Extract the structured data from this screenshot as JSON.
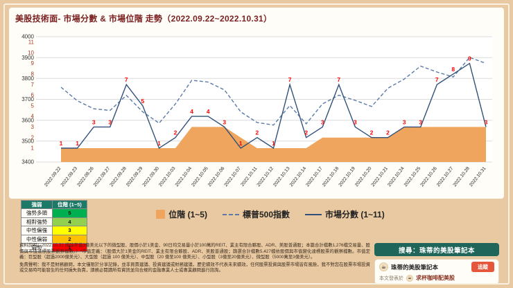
{
  "title": "美股技術面- 市場分數 & 市場位階 走勢（2022.09.22~2022.10.31）",
  "colors": {
    "background": "#e9c9a2",
    "panel": "#fffdf8",
    "title_color": "#7a1f1f",
    "plot_background": "#ffffff",
    "grid_color": "#dcdcdc",
    "area_color": "#f0a55e",
    "sp500_line_color": "#5a7aa8",
    "score_line_color": "#31517a",
    "score_label_color": "#ff0000",
    "score_axis_color": "#9c3b2e",
    "index_axis_color": "#333333",
    "date_label_color": "#222222",
    "banner_background": "#20655a",
    "follow_button_color": "#e4573d",
    "table_header_color": "#1d7a68"
  },
  "chart_data": {
    "type": "combo (area + dashed line + line)",
    "x": [
      "2022.09.22",
      "2022.09.23",
      "2022.09.26",
      "2022.09.27",
      "2022.09.28",
      "2022.09.29",
      "2022.09.30",
      "2022.10.03",
      "2022.10.04",
      "2022.10.05",
      "2022.10.06",
      "2022.10.07",
      "2022.10.11",
      "2022.10.12",
      "2022.10.13",
      "2022.10.14",
      "2022.10.17",
      "2022.10.18",
      "2022.10.19",
      "2022.10.20",
      "2022.10.21",
      "2022.10.24",
      "2022.10.25",
      "2022.10.26",
      "2022.10.27",
      "2022.10.28",
      "2022.10.31"
    ],
    "series": [
      {
        "name": "位階 (1~5)",
        "type": "area",
        "style": "filled",
        "axis": "score",
        "values": [
          1,
          1,
          1,
          1,
          1,
          1,
          1,
          1,
          3,
          3,
          3,
          2,
          1,
          1,
          1,
          1,
          2,
          2,
          2,
          2,
          2,
          3,
          3,
          3,
          3,
          3,
          3
        ]
      },
      {
        "name": "標普500指數",
        "type": "line",
        "style": "dashed",
        "axis": "index",
        "values": [
          3758,
          3693,
          3655,
          3647,
          3719,
          3640,
          3586,
          3678,
          3791,
          3783,
          3745,
          3640,
          3589,
          3577,
          3670,
          3583,
          3678,
          3720,
          3695,
          3666,
          3753,
          3797,
          3859,
          3831,
          3807,
          3901,
          3872
        ]
      },
      {
        "name": "市場分數 (1~11)",
        "type": "line",
        "style": "solid",
        "axis": "score",
        "point_labels": true,
        "values": [
          1,
          1,
          3,
          3,
          7,
          5,
          1,
          2,
          4,
          4,
          3,
          1,
          2,
          1,
          7,
          2,
          3,
          7,
          3,
          2,
          2,
          3,
          3,
          7,
          8,
          9,
          3
        ]
      }
    ],
    "axes": {
      "score": {
        "label": "市場分數 / 位階",
        "ticks": [
          1,
          2,
          3,
          4,
          5,
          6,
          7,
          8,
          9,
          10,
          11
        ],
        "range": [
          0,
          11.5
        ]
      },
      "index": {
        "label": "標普500指數",
        "ticks": [
          3400,
          3500,
          3600,
          3700,
          3800,
          3900,
          4000
        ],
        "range": [
          3400,
          4000
        ]
      }
    },
    "grid": "horizontal",
    "legend_position": "bottom",
    "x_label_rotation": -52
  },
  "strength_table": {
    "headers": [
      "強弱",
      "位階 (1~5)"
    ],
    "rows": [
      {
        "label": "強勢多頭",
        "value": "5",
        "color": "#00b050"
      },
      {
        "label": "相對強勢",
        "value": "4",
        "color": "#92d050"
      },
      {
        "label": "中性偏強",
        "value": "3",
        "color": "#ffff00"
      },
      {
        "label": "中性偏弱",
        "value": "2",
        "color": "#ffc000"
      },
      {
        "label": "弱勢",
        "value": "1",
        "color": "#ff0000"
      }
    ]
  },
  "notes": {
    "data_note": "資料說明：2022.10.31 排除市值3億美元以下的微型股、股價小於1美金、90日均交易量小於100萬的REIT、業主有限合夥股、ADR、美股普通股；本篇合計檔數1,276檔交易量、股價與市值達標股票觀察檔數。）*市值定義：（股價大於1美金的REIT、業主有限合夥股、ADR、美股普通股；篩選合計檔數5,427檔依股價與市值變化達標股票的觀察檔數。市值定義：巨型股（超過2000億美元）、大型股（超過 100 億美元）、中型股（20 億至100 億美元）、小型股（3億至20億美元）、微型股（5000萬至3億美元）。",
    "disclaimer": "免責聲明：我不是財務顧問，本文僅限於分享記錄，並非買賣建議、投資建議或財務建議，歷史績效不代表未來績效，任何股票投資與股票市場皆有風險，我不對您在股票市場投資或交易時可能發生的任何損失負責，請務必閱讀所有資訊並向合規的金融專業人士或專業顧問進行諮詢。"
  },
  "footer": {
    "search_banner": "搜尋：珠蒂的美股筆記本",
    "card": {
      "name": "珠蒂的美股筆記本",
      "follow_label": "追蹤",
      "avatar_glyph": "☕",
      "published_prefix": "本文發表於",
      "published_site": "求杯咖啡配美股"
    }
  }
}
